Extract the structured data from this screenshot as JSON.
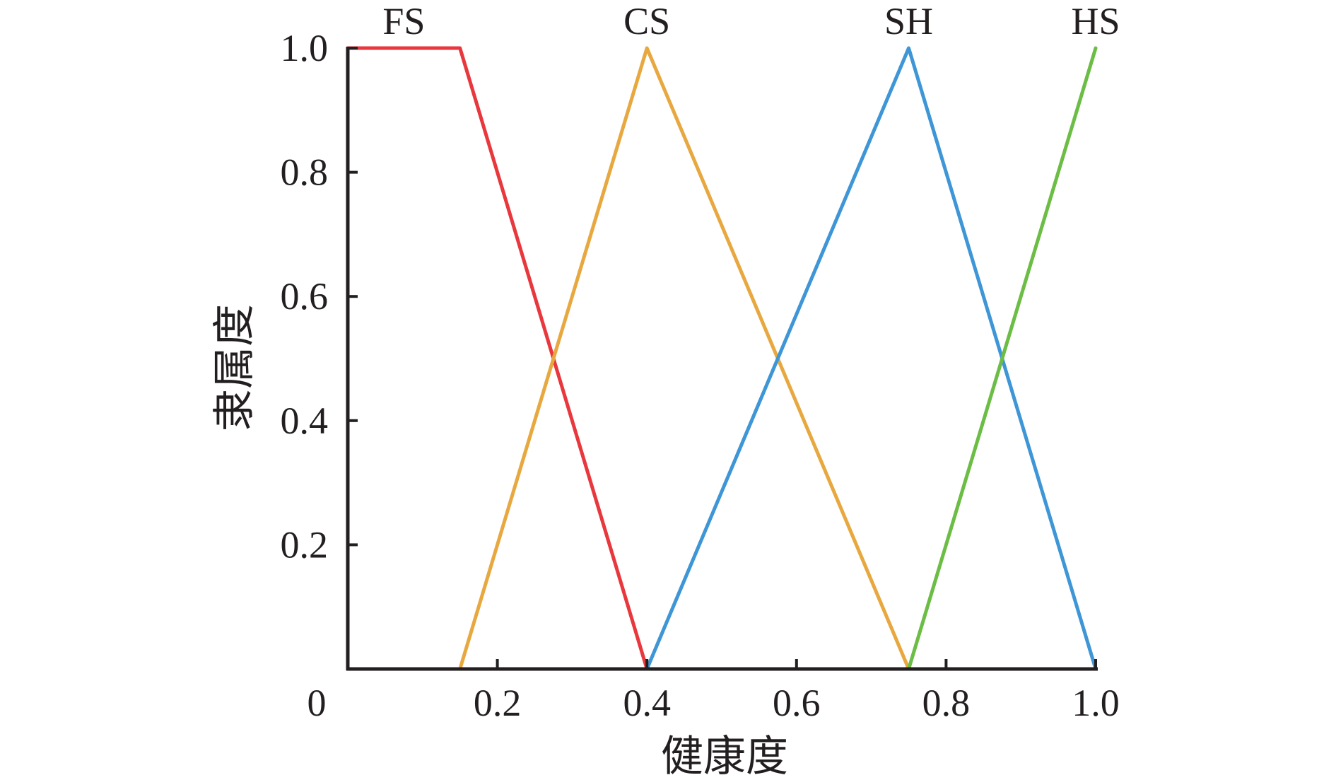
{
  "chart_data": {
    "type": "line",
    "xlabel": "健康度",
    "ylabel": "隶属度",
    "xlim": [
      0,
      1.0
    ],
    "ylim": [
      0,
      1.0
    ],
    "grid": false,
    "x_ticks": [
      "0",
      "0.2",
      "0.4",
      "0.6",
      "0.8",
      "1.0"
    ],
    "x_tick_values": [
      0,
      0.2,
      0.4,
      0.6,
      0.8,
      1.0
    ],
    "y_ticks": [
      "0.2",
      "0.4",
      "0.6",
      "0.8",
      "1.0"
    ],
    "y_tick_values": [
      0.2,
      0.4,
      0.6,
      0.8,
      1.0
    ],
    "series": [
      {
        "name": "FS",
        "color": "#e8383d",
        "x": [
          0,
          0.15,
          0.4
        ],
        "y": [
          1.0,
          1.0,
          0
        ]
      },
      {
        "name": "CS",
        "color": "#e8a840",
        "x": [
          0.15,
          0.4,
          0.75
        ],
        "y": [
          0,
          1.0,
          0
        ]
      },
      {
        "name": "SH",
        "color": "#3e96d6",
        "x": [
          0.4,
          0.75,
          1.0
        ],
        "y": [
          0,
          1.0,
          0
        ]
      },
      {
        "name": "HS",
        "color": "#6cbd45",
        "x": [
          0.75,
          1.0
        ],
        "y": [
          0,
          1.0
        ]
      }
    ]
  }
}
